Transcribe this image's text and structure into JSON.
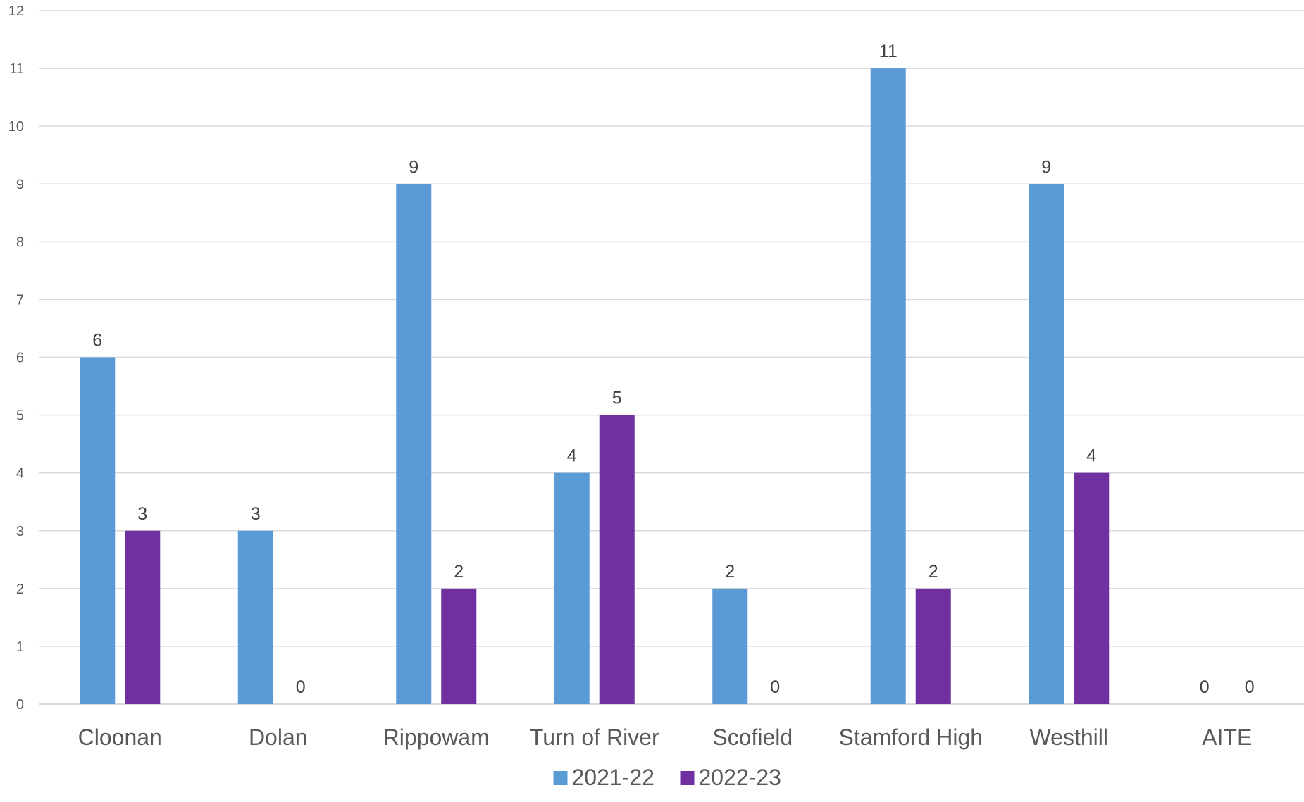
{
  "chart_data": {
    "type": "bar",
    "title": "",
    "xlabel": "",
    "ylabel": "",
    "categories": [
      "Cloonan",
      "Dolan",
      "Rippowam",
      "Turn of River",
      "Scofield",
      "Stamford High",
      "Westhill",
      "AITE"
    ],
    "series": [
      {
        "name": "2021-22",
        "color": "#5b9bd5",
        "values": [
          6,
          3,
          9,
          4,
          2,
          11,
          9,
          0
        ]
      },
      {
        "name": "2022-23",
        "color": "#7030a0",
        "values": [
          3,
          0,
          2,
          5,
          0,
          2,
          4,
          0
        ]
      }
    ],
    "ylim": [
      0,
      12
    ],
    "yticks": [
      0,
      1,
      2,
      3,
      4,
      5,
      6,
      7,
      8,
      9,
      10,
      11,
      12
    ],
    "grid": true,
    "gridline_color": "#d9d9d9",
    "legend_position": "bottom",
    "data_labels": true
  }
}
